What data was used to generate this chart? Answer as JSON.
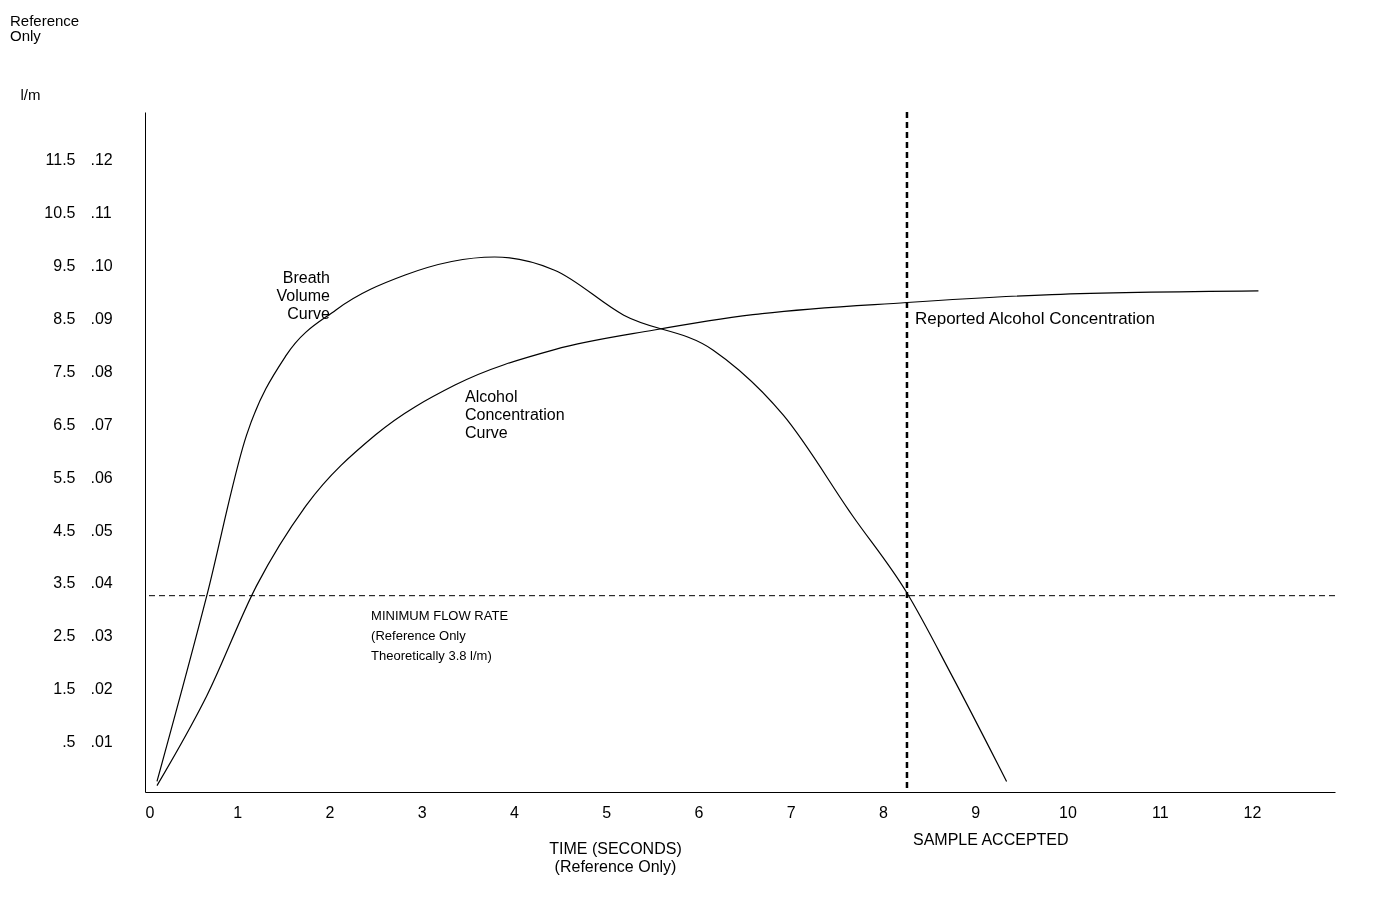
{
  "chart_data": {
    "type": "line",
    "xlabel": "TIME  (SECONDS)\n(Reference Only)",
    "ylabel": "l/m",
    "xlim": [
      0,
      12.9
    ],
    "xticks": [
      0,
      1,
      2,
      3,
      4,
      5,
      6,
      7,
      8,
      9,
      10,
      11,
      12
    ],
    "ylim": [
      -0.45,
      12.4
    ],
    "yticks": [
      {
        "value": 0.5,
        "label": ".5"
      },
      1.5,
      2.5,
      3.5,
      4.5,
      5.5,
      6.5,
      7.5,
      8.5,
      9.5,
      10.5,
      11.5
    ],
    "y2lim": [
      0.0005,
      0.129
    ],
    "y2ticks": [
      {
        "value": 0.01,
        "label": ".01"
      },
      {
        "value": 0.02,
        "label": ".02"
      },
      {
        "value": 0.03,
        "label": ".03"
      },
      {
        "value": 0.04,
        "label": ".04"
      },
      {
        "value": 0.05,
        "label": ".05"
      },
      {
        "value": 0.06,
        "label": ".06"
      },
      {
        "value": 0.07,
        "label": ".07"
      },
      {
        "value": 0.08,
        "label": ".08"
      },
      {
        "value": 0.09,
        "label": ".09"
      },
      {
        "value": 0.1,
        "label": ".10"
      },
      {
        "value": 0.11,
        "label": ".11"
      },
      {
        "value": 0.12,
        "label": ".12"
      }
    ],
    "series": [
      {
        "name": "Breath Volume Curve",
        "color": "#000000",
        "x": [
          0.13,
          0.67,
          1.1,
          1.53,
          2.07,
          2.82,
          3.79,
          4.44,
          5.19,
          6.16,
          6.92,
          7.67,
          8.26,
          8.75,
          9.34
        ],
        "values": [
          -0.25,
          3.26,
          6.29,
          7.8,
          8.66,
          9.32,
          9.66,
          9.41,
          8.56,
          7.9,
          6.67,
          4.77,
          3.31,
          1.74,
          -0.25
        ]
      },
      {
        "name": "Alcohol Concentration Curve",
        "color": "#000000",
        "axis": "y2",
        "x": [
          0.13,
          0.67,
          1.21,
          1.75,
          2.5,
          3.36,
          4.44,
          5.52,
          6.59,
          8.26,
          9.83,
          12.07
        ],
        "values": [
          0.0017,
          0.0187,
          0.0395,
          0.0547,
          0.068,
          0.0774,
          0.0841,
          0.0878,
          0.0907,
          0.093,
          0.0945,
          0.0952
        ]
      }
    ],
    "ref_lines": [
      {
        "axis": "y",
        "value": 3.26,
        "label": "MINIMUM FLOW RATE\n(Reference Only\nTheoretically 3.8 l/m)",
        "line_style": "dashed"
      },
      {
        "axis": "x",
        "value": 8.26,
        "label": "SAMPLE ACCEPTED",
        "line_style": "dashed"
      }
    ],
    "annotations": [
      "Reference Only",
      {
        "text": "Reported Alcohol Concentration",
        "x": 8.26,
        "y": 8.8
      }
    ],
    "grid": false,
    "marker": "none",
    "line_style": "solid"
  }
}
